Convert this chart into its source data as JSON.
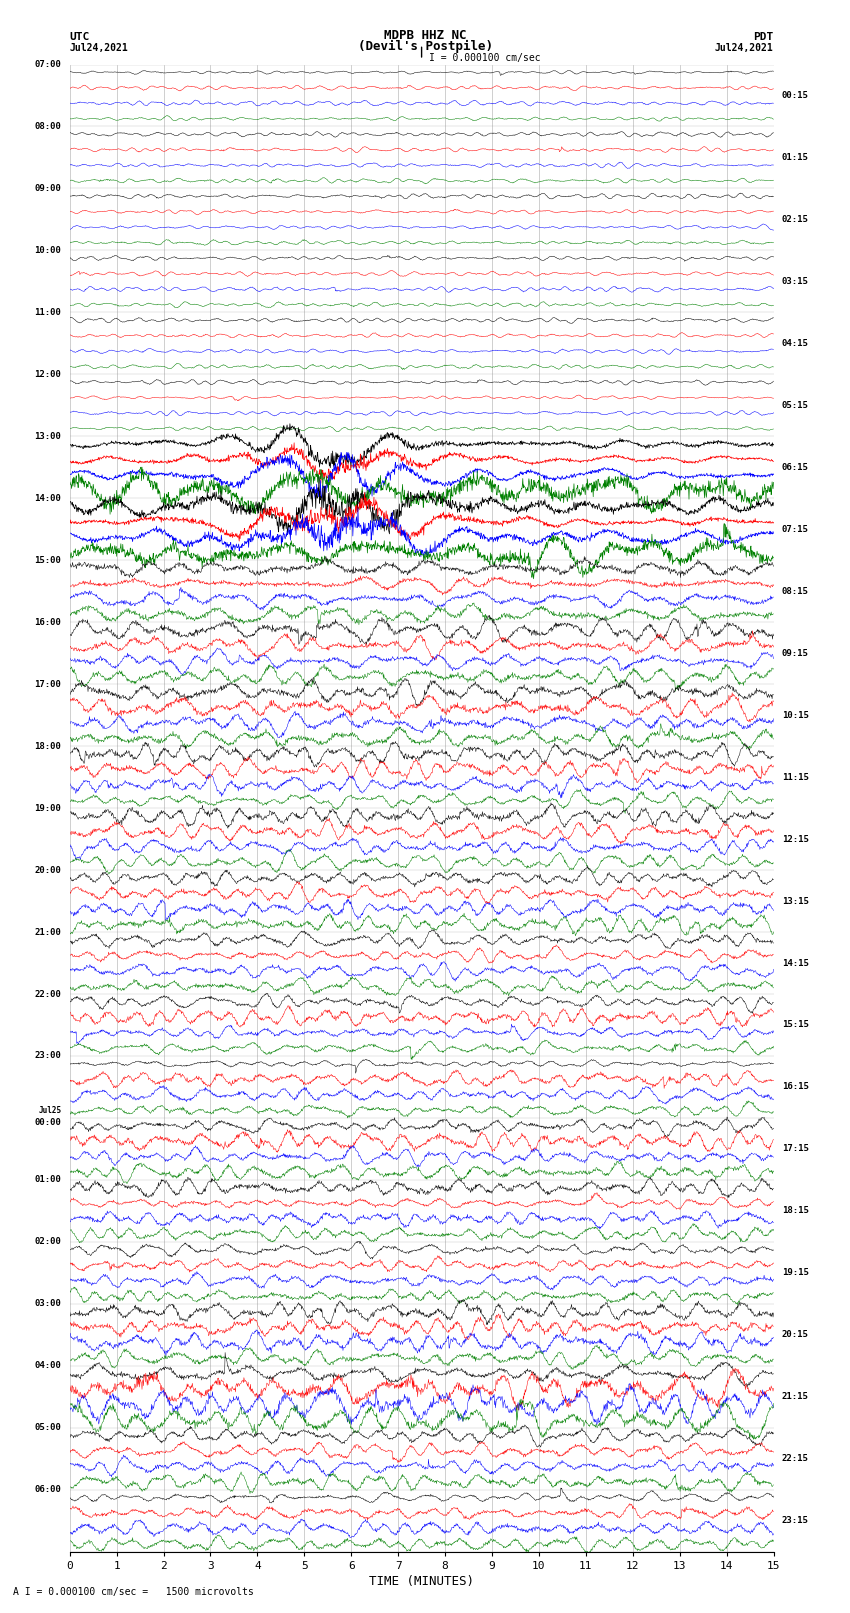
{
  "title_line1": "MDPB HHZ NC",
  "title_line2": "(Devil's Postpile)",
  "scale_label": "I = 0.000100 cm/sec",
  "bottom_label": "A I = 0.000100 cm/sec =   1500 microvolts",
  "xlabel": "TIME (MINUTES)",
  "utc_label": "UTC",
  "utc_date": "Jul24,2021",
  "pdt_label": "PDT",
  "pdt_date": "Jul24,2021",
  "left_times": [
    "07:00",
    "08:00",
    "09:00",
    "10:00",
    "11:00",
    "12:00",
    "13:00",
    "14:00",
    "15:00",
    "16:00",
    "17:00",
    "18:00",
    "19:00",
    "20:00",
    "21:00",
    "22:00",
    "23:00",
    "Jul25\n00:00",
    "01:00",
    "02:00",
    "03:00",
    "04:00",
    "05:00",
    "06:00"
  ],
  "right_times": [
    "00:15",
    "01:15",
    "02:15",
    "03:15",
    "04:15",
    "05:15",
    "06:15",
    "07:15",
    "08:15",
    "09:15",
    "10:15",
    "11:15",
    "12:15",
    "13:15",
    "14:15",
    "15:15",
    "16:15",
    "17:15",
    "18:15",
    "19:15",
    "20:15",
    "21:15",
    "22:15",
    "23:15"
  ],
  "n_rows": 24,
  "traces_per_row": 4,
  "colors": [
    "black",
    "red",
    "blue",
    "green"
  ],
  "bg_color": "#ffffff",
  "grid_color": "#888888",
  "xmin": 0,
  "xmax": 15,
  "xticks": [
    0,
    1,
    2,
    3,
    4,
    5,
    6,
    7,
    8,
    9,
    10,
    11,
    12,
    13,
    14,
    15
  ],
  "fig_width": 8.5,
  "fig_height": 16.13,
  "amplitude_by_row": [
    0.06,
    0.06,
    0.06,
    0.06,
    0.06,
    0.06,
    0.45,
    0.55,
    0.22,
    0.28,
    0.28,
    0.25,
    0.25,
    0.22,
    0.2,
    0.22,
    0.18,
    0.22,
    0.2,
    0.18,
    0.25,
    0.4,
    0.22,
    0.18
  ],
  "noise_freq_by_row": [
    8,
    8,
    8,
    8,
    8,
    8,
    2,
    2,
    3,
    4,
    4,
    5,
    5,
    5,
    5,
    5,
    5,
    5,
    5,
    5,
    5,
    4,
    5,
    5
  ]
}
